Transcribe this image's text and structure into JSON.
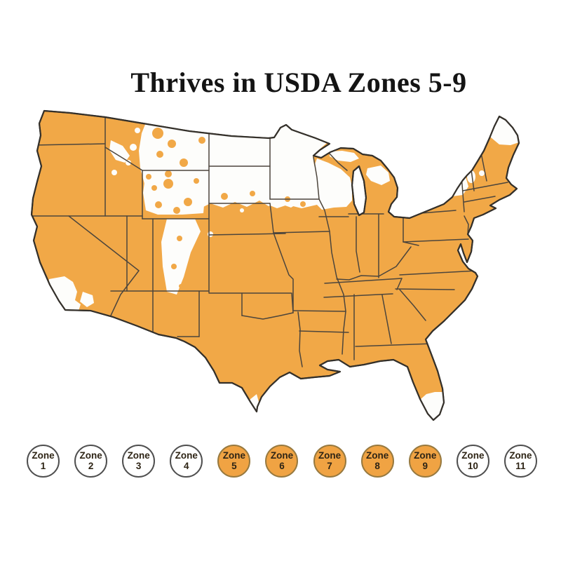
{
  "title": "Thrives in USDA Zones 5-9",
  "map": {
    "highlighted_zone_range": "5-9",
    "thriving_region_label": "USDA Zones 5-9 (orange)",
    "non_thriving_region_label": "Zones 1-4 and 10-11 (white)"
  },
  "legend": {
    "zones": [
      {
        "label": "Zone",
        "number": "1",
        "highlighted": false
      },
      {
        "label": "Zone",
        "number": "2",
        "highlighted": false
      },
      {
        "label": "Zone",
        "number": "3",
        "highlighted": false
      },
      {
        "label": "Zone",
        "number": "4",
        "highlighted": false
      },
      {
        "label": "Zone",
        "number": "5",
        "highlighted": true
      },
      {
        "label": "Zone",
        "number": "6",
        "highlighted": true
      },
      {
        "label": "Zone",
        "number": "7",
        "highlighted": true
      },
      {
        "label": "Zone",
        "number": "8",
        "highlighted": true
      },
      {
        "label": "Zone",
        "number": "9",
        "highlighted": true
      },
      {
        "label": "Zone",
        "number": "10",
        "highlighted": false
      },
      {
        "label": "Zone",
        "number": "11",
        "highlighted": false
      }
    ]
  },
  "colors": {
    "background": "#FFFFFF",
    "map_fill": "#F1A847",
    "map_outline": "#34302a",
    "state_border": "#4c453c",
    "cold_region": "#FDFDFB",
    "legend_highlight_fill": "#F0A343",
    "legend_highlight_stroke": "#97793f",
    "legend_plain_fill": "#FFFFFF",
    "legend_plain_stroke": "#4f4f4f",
    "legend_text": "#2e2415",
    "title_color": "#141414"
  }
}
